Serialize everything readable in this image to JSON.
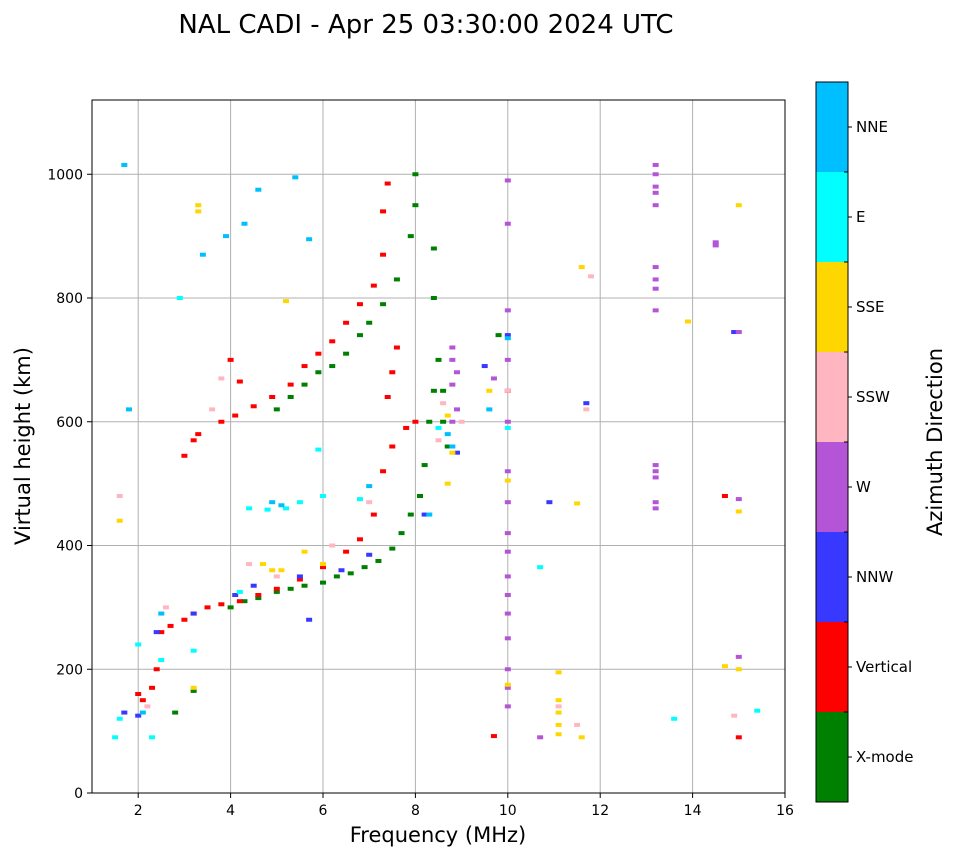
{
  "chart_data": {
    "type": "scatter",
    "title": "NAL CADI - Apr 25 03:30:00 2024 UTC",
    "xlabel": "Frequency (MHz)",
    "ylabel": "Virtual height (km)",
    "xlim": [
      1,
      16
    ],
    "ylim": [
      0,
      1120
    ],
    "xticks": [
      2,
      4,
      6,
      8,
      10,
      12,
      14,
      16
    ],
    "yticks": [
      0,
      200,
      400,
      600,
      800,
      1000
    ],
    "grid": true,
    "colorbar": {
      "label": "Azimuth Direction",
      "categories": [
        "X-mode",
        "Vertical",
        "NNW",
        "W",
        "SSW",
        "SSE",
        "E",
        "NNE"
      ],
      "colors": [
        "#008000",
        "#ff0000",
        "#3838ff",
        "#b455d8",
        "#ffb6c1",
        "#ffd700",
        "#00ffff",
        "#00bfff"
      ]
    },
    "series": [
      {
        "name": "X-mode",
        "points": [
          [
            2.8,
            130
          ],
          [
            3.2,
            165
          ],
          [
            4.0,
            300
          ],
          [
            4.3,
            310
          ],
          [
            4.6,
            315
          ],
          [
            5.0,
            325
          ],
          [
            5.3,
            330
          ],
          [
            5.6,
            335
          ],
          [
            6.0,
            340
          ],
          [
            6.3,
            350
          ],
          [
            6.6,
            355
          ],
          [
            6.9,
            365
          ],
          [
            7.2,
            375
          ],
          [
            7.5,
            395
          ],
          [
            7.7,
            420
          ],
          [
            7.9,
            450
          ],
          [
            8.1,
            480
          ],
          [
            8.2,
            530
          ],
          [
            8.3,
            600
          ],
          [
            8.4,
            650
          ],
          [
            8.5,
            700
          ],
          [
            5.0,
            620
          ],
          [
            5.3,
            640
          ],
          [
            5.6,
            660
          ],
          [
            5.9,
            680
          ],
          [
            6.2,
            690
          ],
          [
            6.5,
            710
          ],
          [
            6.8,
            740
          ],
          [
            7.0,
            760
          ],
          [
            7.3,
            790
          ],
          [
            7.6,
            830
          ],
          [
            7.9,
            900
          ],
          [
            8.0,
            950
          ],
          [
            8.0,
            1000
          ],
          [
            8.4,
            880
          ],
          [
            8.4,
            800
          ],
          [
            8.6,
            650
          ],
          [
            8.6,
            600
          ],
          [
            8.7,
            560
          ],
          [
            9.8,
            740
          ]
        ]
      },
      {
        "name": "Vertical",
        "points": [
          [
            2.0,
            160
          ],
          [
            2.1,
            150
          ],
          [
            2.3,
            170
          ],
          [
            2.4,
            200
          ],
          [
            2.5,
            260
          ],
          [
            2.7,
            270
          ],
          [
            3.0,
            280
          ],
          [
            3.2,
            290
          ],
          [
            3.5,
            300
          ],
          [
            3.8,
            305
          ],
          [
            4.2,
            310
          ],
          [
            4.6,
            320
          ],
          [
            5.0,
            330
          ],
          [
            5.5,
            345
          ],
          [
            6.0,
            365
          ],
          [
            6.5,
            390
          ],
          [
            6.8,
            410
          ],
          [
            7.1,
            450
          ],
          [
            7.3,
            520
          ],
          [
            7.5,
            560
          ],
          [
            7.8,
            590
          ],
          [
            8.0,
            600
          ],
          [
            7.4,
            640
          ],
          [
            7.5,
            680
          ],
          [
            7.6,
            720
          ],
          [
            3.0,
            545
          ],
          [
            3.3,
            580
          ],
          [
            3.8,
            600
          ],
          [
            4.1,
            610
          ],
          [
            4.5,
            625
          ],
          [
            4.9,
            640
          ],
          [
            5.3,
            660
          ],
          [
            5.6,
            690
          ],
          [
            5.9,
            710
          ],
          [
            6.2,
            730
          ],
          [
            6.5,
            760
          ],
          [
            6.8,
            790
          ],
          [
            7.1,
            820
          ],
          [
            7.3,
            870
          ],
          [
            7.3,
            940
          ],
          [
            7.4,
            985
          ],
          [
            4.0,
            700
          ],
          [
            4.2,
            665
          ],
          [
            3.2,
            570
          ],
          [
            9.7,
            92
          ],
          [
            10.0,
            650
          ],
          [
            14.7,
            480
          ],
          [
            15.0,
            90
          ]
        ]
      },
      {
        "name": "NNW",
        "points": [
          [
            1.7,
            130
          ],
          [
            2.0,
            125
          ],
          [
            2.4,
            260
          ],
          [
            3.2,
            290
          ],
          [
            4.1,
            320
          ],
          [
            4.5,
            335
          ],
          [
            5.5,
            350
          ],
          [
            5.7,
            280
          ],
          [
            6.4,
            360
          ],
          [
            7.0,
            385
          ],
          [
            8.2,
            450
          ],
          [
            8.9,
            550
          ],
          [
            9.5,
            690
          ],
          [
            10.0,
            740
          ],
          [
            10.9,
            470
          ],
          [
            11.7,
            630
          ],
          [
            14.9,
            745
          ]
        ]
      },
      {
        "name": "W",
        "points": [
          [
            8.8,
            720
          ],
          [
            8.8,
            700
          ],
          [
            8.9,
            680
          ],
          [
            8.8,
            660
          ],
          [
            8.9,
            620
          ],
          [
            8.8,
            600
          ],
          [
            10.0,
            990
          ],
          [
            10.0,
            920
          ],
          [
            10.0,
            780
          ],
          [
            10.0,
            700
          ],
          [
            10.0,
            600
          ],
          [
            10.0,
            520
          ],
          [
            10.0,
            470
          ],
          [
            10.0,
            420
          ],
          [
            10.0,
            390
          ],
          [
            10.0,
            350
          ],
          [
            10.0,
            320
          ],
          [
            10.0,
            290
          ],
          [
            10.0,
            250
          ],
          [
            10.0,
            200
          ],
          [
            10.0,
            170
          ],
          [
            10.0,
            140
          ],
          [
            10.7,
            90
          ],
          [
            9.7,
            670
          ],
          [
            13.2,
            1015
          ],
          [
            13.2,
            1000
          ],
          [
            13.2,
            980
          ],
          [
            13.2,
            970
          ],
          [
            13.2,
            950
          ],
          [
            13.2,
            850
          ],
          [
            13.2,
            830
          ],
          [
            13.2,
            815
          ],
          [
            13.2,
            780
          ],
          [
            13.2,
            530
          ],
          [
            13.2,
            520
          ],
          [
            13.2,
            510
          ],
          [
            13.2,
            470
          ],
          [
            13.2,
            460
          ],
          [
            14.5,
            890
          ],
          [
            14.5,
            885
          ],
          [
            15.0,
            475
          ],
          [
            15.0,
            220
          ],
          [
            15.0,
            745
          ]
        ]
      },
      {
        "name": "SSW",
        "points": [
          [
            1.6,
            480
          ],
          [
            2.2,
            140
          ],
          [
            2.6,
            300
          ],
          [
            3.6,
            620
          ],
          [
            3.8,
            670
          ],
          [
            4.4,
            370
          ],
          [
            5.0,
            350
          ],
          [
            6.2,
            400
          ],
          [
            7.0,
            470
          ],
          [
            8.5,
            570
          ],
          [
            8.6,
            630
          ],
          [
            9.0,
            600
          ],
          [
            11.1,
            140
          ],
          [
            11.5,
            110
          ],
          [
            11.7,
            620
          ],
          [
            11.8,
            835
          ],
          [
            14.9,
            125
          ],
          [
            10.0,
            650
          ]
        ]
      },
      {
        "name": "SSE",
        "points": [
          [
            1.6,
            440
          ],
          [
            3.3,
            950
          ],
          [
            3.3,
            940
          ],
          [
            3.2,
            170
          ],
          [
            4.7,
            370
          ],
          [
            4.9,
            360
          ],
          [
            5.1,
            360
          ],
          [
            5.2,
            795
          ],
          [
            5.6,
            390
          ],
          [
            6.0,
            370
          ],
          [
            8.7,
            610
          ],
          [
            8.8,
            550
          ],
          [
            8.7,
            500
          ],
          [
            9.6,
            650
          ],
          [
            10.0,
            505
          ],
          [
            10.0,
            175
          ],
          [
            11.1,
            195
          ],
          [
            11.1,
            150
          ],
          [
            11.1,
            130
          ],
          [
            11.1,
            110
          ],
          [
            11.1,
            95
          ],
          [
            11.6,
            90
          ],
          [
            11.5,
            468
          ],
          [
            11.6,
            850
          ],
          [
            13.9,
            762
          ],
          [
            15.0,
            950
          ],
          [
            15.0,
            455
          ],
          [
            14.7,
            205
          ],
          [
            15.0,
            200
          ]
        ]
      },
      {
        "name": "E",
        "points": [
          [
            1.5,
            90
          ],
          [
            1.6,
            120
          ],
          [
            2.0,
            240
          ],
          [
            2.3,
            90
          ],
          [
            2.5,
            215
          ],
          [
            2.9,
            800
          ],
          [
            3.2,
            230
          ],
          [
            4.2,
            325
          ],
          [
            4.4,
            460
          ],
          [
            4.8,
            458
          ],
          [
            5.2,
            460
          ],
          [
            5.5,
            470
          ],
          [
            5.9,
            555
          ],
          [
            6.0,
            480
          ],
          [
            6.8,
            475
          ],
          [
            8.5,
            590
          ],
          [
            10.0,
            590
          ],
          [
            10.7,
            365
          ],
          [
            13.6,
            120
          ],
          [
            15.4,
            133
          ]
        ]
      },
      {
        "name": "NNE",
        "points": [
          [
            1.7,
            1015
          ],
          [
            1.8,
            620
          ],
          [
            2.1,
            130
          ],
          [
            2.5,
            290
          ],
          [
            3.4,
            870
          ],
          [
            3.9,
            900
          ],
          [
            4.3,
            920
          ],
          [
            4.6,
            975
          ],
          [
            5.4,
            995
          ],
          [
            5.7,
            895
          ],
          [
            4.9,
            470
          ],
          [
            5.1,
            465
          ],
          [
            7.0,
            496
          ],
          [
            8.3,
            450
          ],
          [
            8.7,
            580
          ],
          [
            8.8,
            560
          ],
          [
            9.6,
            620
          ],
          [
            10.0,
            735
          ]
        ]
      }
    ]
  }
}
